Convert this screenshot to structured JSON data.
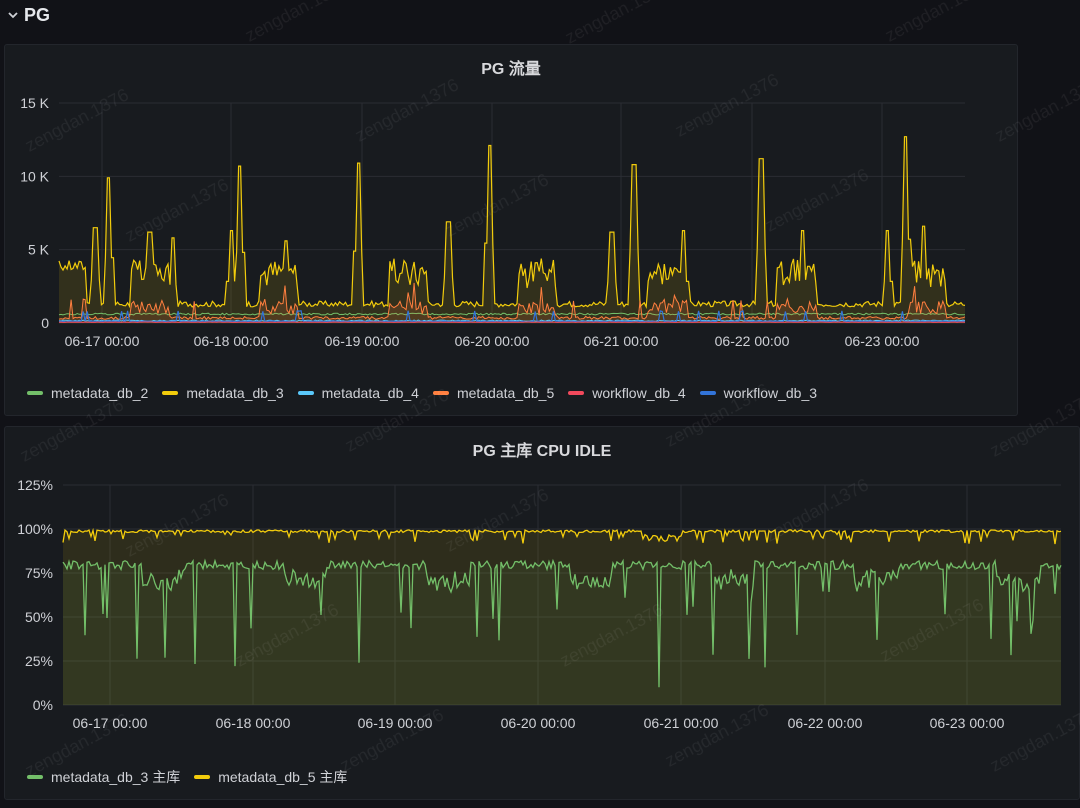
{
  "row": {
    "title": "PG"
  },
  "watermark": "zengdan.1376",
  "charts": [
    {
      "title": "PG 流量",
      "y_ticks": [
        "15 K",
        "10 K",
        "5 K",
        "0"
      ],
      "x_ticks": [
        "06-17 00:00",
        "06-18 00:00",
        "06-19 00:00",
        "06-20 00:00",
        "06-21 00:00",
        "06-22 00:00",
        "06-23 00:00"
      ],
      "legend": [
        {
          "name": "metadata_db_2",
          "color": "#73bf69"
        },
        {
          "name": "metadata_db_3",
          "color": "#f2cc0c"
        },
        {
          "name": "metadata_db_4",
          "color": "#5ac8fa"
        },
        {
          "name": "metadata_db_5",
          "color": "#ff7f3f"
        },
        {
          "name": "workflow_db_4",
          "color": "#f2495c"
        },
        {
          "name": "workflow_db_3",
          "color": "#3274d9"
        }
      ]
    },
    {
      "title": "PG 主库 CPU IDLE",
      "y_ticks": [
        "125%",
        "100%",
        "75%",
        "50%",
        "25%",
        "0%"
      ],
      "x_ticks": [
        "06-17 00:00",
        "06-18 00:00",
        "06-19 00:00",
        "06-20 00:00",
        "06-21 00:00",
        "06-22 00:00",
        "06-23 00:00"
      ],
      "legend": [
        {
          "name": "metadata_db_3 主库",
          "color": "#73bf69"
        },
        {
          "name": "metadata_db_5 主库",
          "color": "#f2cc0c"
        }
      ]
    }
  ],
  "chart_data": [
    {
      "type": "line",
      "title": "PG 流量",
      "x_range": [
        "06-16 17:00",
        "06-23 17:00"
      ],
      "ylim": [
        0,
        15000
      ],
      "grid": true,
      "legend_position": "bottom",
      "series": [
        {
          "name": "metadata_db_3",
          "approx_baseline": 1200,
          "approx_peaks": [
            9900,
            10700,
            10900,
            12100,
            10800,
            11200,
            12700
          ]
        },
        {
          "name": "metadata_db_5",
          "approx_baseline": 300,
          "approx_peaks": [
            2000,
            1600,
            1500,
            1300,
            1400,
            2800,
            800
          ]
        },
        {
          "name": "metadata_db_2",
          "approx_baseline": 600
        },
        {
          "name": "metadata_db_4",
          "approx_baseline": 150
        },
        {
          "name": "workflow_db_4",
          "approx_baseline": 50
        },
        {
          "name": "workflow_db_3",
          "approx_baseline": 100
        }
      ]
    },
    {
      "type": "area",
      "title": "PG 主库 CPU IDLE",
      "x_range": [
        "06-16 17:00",
        "06-23 17:00"
      ],
      "ylim": [
        0,
        125
      ],
      "grid": true,
      "legend_position": "bottom",
      "series": [
        {
          "name": "metadata_db_3 主库",
          "approx_level": 76,
          "approx_min": 10
        },
        {
          "name": "metadata_db_5 主库",
          "approx_level": 98,
          "approx_min": 90
        }
      ]
    }
  ]
}
